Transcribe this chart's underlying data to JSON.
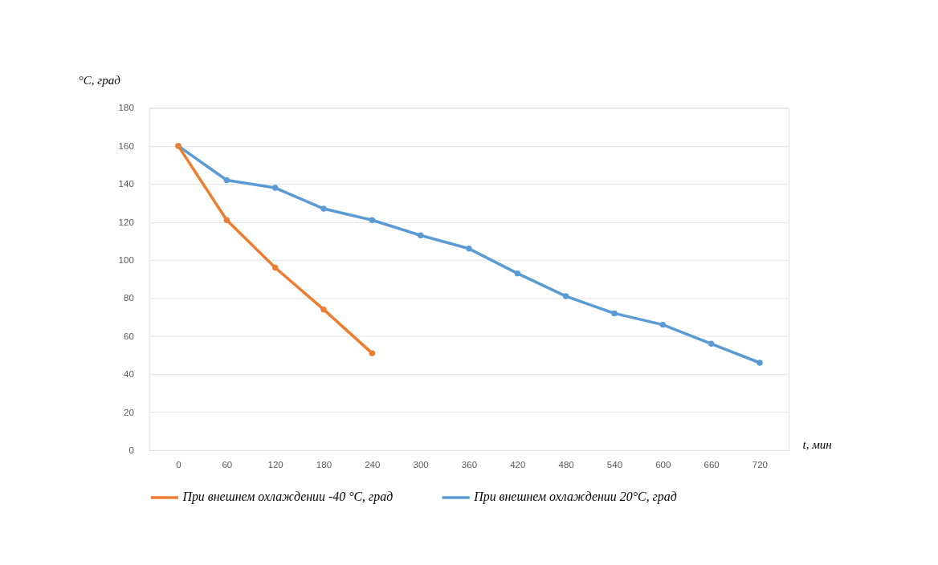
{
  "chart_data": {
    "type": "line",
    "ylabel": "°C, град",
    "xlabel": "t, мин",
    "categories": [
      "0",
      "60",
      "120",
      "180",
      "240",
      "300",
      "360",
      "420",
      "480",
      "540",
      "600",
      "660",
      "720"
    ],
    "series": [
      {
        "name": "При внешнем охлаждении -40 °C, град",
        "color": "#ed7d31",
        "values": [
          160,
          121,
          96,
          74,
          51,
          null,
          null,
          null,
          null,
          null,
          null,
          null,
          null
        ]
      },
      {
        "name": "При внешнем охлаждении 20°C, град",
        "color": "#5b9bd5",
        "values": [
          160,
          142,
          138,
          127,
          121,
          113,
          106,
          93,
          81,
          72,
          66,
          56,
          46
        ]
      }
    ],
    "ylim": [
      0,
      180
    ],
    "yticks": [
      0,
      20,
      40,
      60,
      80,
      100,
      120,
      140,
      160,
      180
    ],
    "grid": "y",
    "legend": "bottom",
    "marker": "circle",
    "line_style": "solid"
  }
}
